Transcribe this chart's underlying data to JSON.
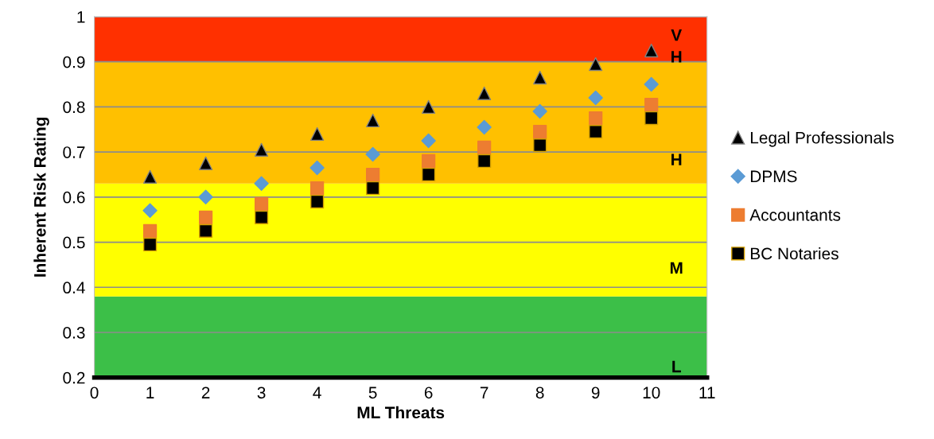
{
  "chart_data": {
    "type": "scatter",
    "xlabel": "ML Threats",
    "ylabel": "Inherent Risk Rating",
    "x": [
      1,
      2,
      3,
      4,
      5,
      6,
      7,
      8,
      9,
      10
    ],
    "series": [
      {
        "name": "Legal Professionals",
        "color": "#000000",
        "marker": "triangle",
        "values": [
          0.645,
          0.675,
          0.705,
          0.74,
          0.77,
          0.8,
          0.83,
          0.865,
          0.895,
          0.925
        ]
      },
      {
        "name": "DPMS",
        "color": "#5b9bd5",
        "marker": "diamond",
        "values": [
          0.57,
          0.6,
          0.63,
          0.665,
          0.695,
          0.725,
          0.755,
          0.79,
          0.82,
          0.85
        ]
      },
      {
        "name": "Accountants",
        "color": "#ed7d31",
        "marker": "square",
        "values": [
          0.525,
          0.555,
          0.585,
          0.62,
          0.65,
          0.68,
          0.71,
          0.745,
          0.775,
          0.805
        ]
      },
      {
        "name": "BC Notaries",
        "color": "#000000",
        "marker": "square",
        "values": [
          0.495,
          0.525,
          0.555,
          0.59,
          0.62,
          0.65,
          0.68,
          0.715,
          0.745,
          0.775
        ]
      }
    ],
    "xlim": [
      0,
      11
    ],
    "xticks": [
      0,
      1,
      2,
      3,
      4,
      5,
      6,
      7,
      8,
      9,
      10,
      11
    ],
    "ylim": [
      0.2,
      1
    ],
    "yticks": [
      0.2,
      0.3,
      0.4,
      0.5,
      0.6,
      0.7,
      0.8,
      0.9,
      1
    ],
    "bands": [
      {
        "axis": "y",
        "from": 0.2,
        "to": 0.38,
        "color": "#3cbf48"
      },
      {
        "axis": "y",
        "from": 0.38,
        "to": 0.63,
        "color": "#ffff00"
      },
      {
        "axis": "y",
        "from": 0.63,
        "to": 0.9,
        "color": "#ffc000"
      },
      {
        "axis": "y",
        "from": 0.9,
        "to": 1,
        "color": "#ff3000"
      }
    ],
    "annotations": [
      "V",
      "H",
      "H",
      "M",
      "L"
    ],
    "grid": "y",
    "legend": "right"
  }
}
